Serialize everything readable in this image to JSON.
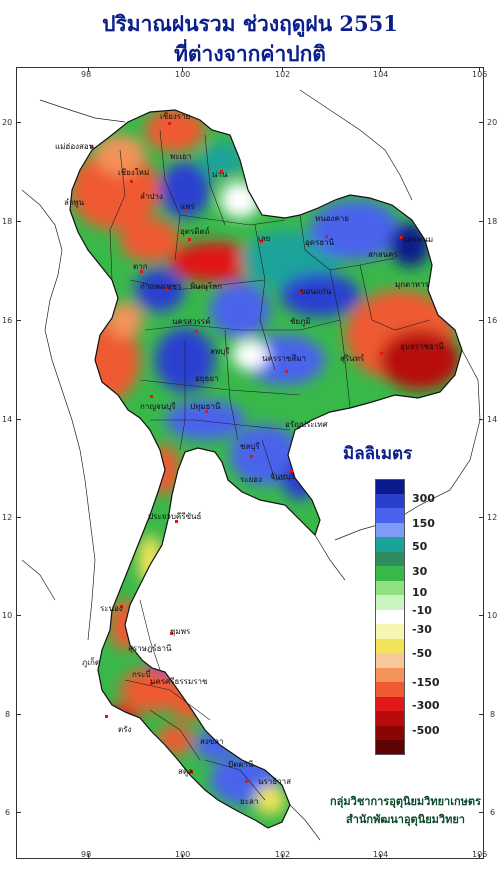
{
  "title": {
    "line1": "ปริมาณฝนรวม ช่วงฤดูฝน 2551",
    "line2": "ที่ต่างจากค่าปกติ"
  },
  "axes": {
    "longitude_labels": [
      "98",
      "100",
      "102",
      "104",
      "106"
    ],
    "latitude_labels": [
      "20",
      "18",
      "16",
      "14",
      "12",
      "10",
      "8",
      "6"
    ]
  },
  "legend": {
    "title": "มิลลิเมตร",
    "labels": [
      "300",
      "150",
      "50",
      "30",
      "10",
      "-10",
      "-30",
      "-50",
      "-150",
      "-300",
      "-500"
    ],
    "colors": [
      "#0a1a8c",
      "#2a3fd0",
      "#4a63ec",
      "#7e9cf6",
      "#1aa39a",
      "#2e8c5e",
      "#39b84a",
      "#8fe07e",
      "#c9f5c0",
      "#ffffff",
      "#f6f6b0",
      "#f2e458",
      "#f7c89a",
      "#f3935a",
      "#ef5a32",
      "#e01818",
      "#b80b0b",
      "#8c0505",
      "#5e0202"
    ]
  },
  "credit": {
    "line1": "กลุ่มวิชาการอุตุนิยมวิทยาเกษตร",
    "line2": "สำนักพัฒนาอุตุนิยมวิทยา"
  },
  "places": [
    "เชียงราย",
    "แม่ฮ่องสอน",
    "เชียงใหม่",
    "น่าน",
    "พะเยา",
    "ลำพูน",
    "ลำปาง",
    "แพร่",
    "อุตรดิตถ์",
    "ตาก",
    "เลย",
    "หนองคาย",
    "นครพนม",
    "สกลนคร",
    "อุดรธานี",
    "มุกดาหาร",
    "ขอนแก่น",
    "พิษณุโลก",
    "กำแพงเพชร",
    "นครสวรรค์",
    "ชัยภูมิ",
    "ลพบุรี",
    "นครราชสีมา",
    "อุบลราชธานี",
    "สุรินทร์",
    "กาญจนบุรี",
    "อยุธยา",
    "ปทุมธานี",
    "ชลบุรี",
    "ระยอง",
    "จันทบุรี",
    "ประจวบคีรีขันธ์",
    "อรัญประเทศ",
    "ชุมพร",
    "ระนอง",
    "สุราษฎร์ธานี",
    "นครศรีธรรมราช",
    "ภูเก็ต",
    "กระบี่",
    "ตรัง",
    "สงขลา",
    "สตูล",
    "ปัตตานี",
    "นราธิวาส",
    "ยะลา"
  ]
}
